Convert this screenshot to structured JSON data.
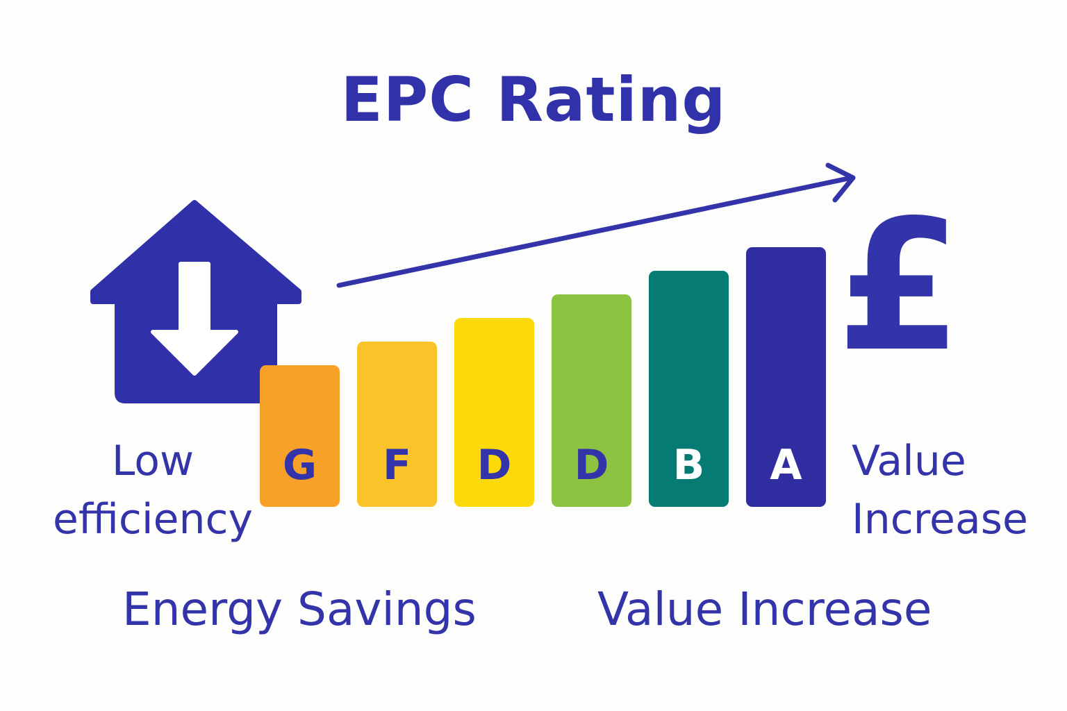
{
  "title": "EPC Rating",
  "labels": {
    "low_efficiency_line1": "Low",
    "low_efficiency_line2": "efficiency",
    "value_increase_line1": "Value",
    "value_increase_line2": "Increase",
    "energy_savings": "Energy Savings",
    "value_increase": "Value Increase"
  },
  "currency_symbol": "£",
  "icons": {
    "house": "house-down-arrow-icon",
    "trend": "upward-trend-arrow-icon"
  },
  "chart_data": {
    "type": "bar",
    "categories": [
      "G",
      "F",
      "D",
      "D",
      "B",
      "A"
    ],
    "colors": [
      "#f7a128",
      "#fac32a",
      "#fcd90a",
      "#8cc442",
      "#067b74",
      "#2f2d9f"
    ],
    "label_colors": [
      "#3333aa",
      "#3333aa",
      "#3333aa",
      "#3333aa",
      "#ffffff",
      "#ffffff"
    ],
    "relative_heights": [
      1,
      2,
      3,
      4,
      5,
      6
    ],
    "title": "EPC Rating",
    "xlabel": "",
    "ylabel": ""
  }
}
